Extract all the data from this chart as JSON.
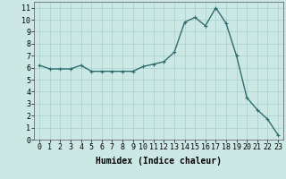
{
  "x": [
    0,
    1,
    2,
    3,
    4,
    5,
    6,
    7,
    8,
    9,
    10,
    11,
    12,
    13,
    14,
    15,
    16,
    17,
    18,
    19,
    20,
    21,
    22,
    23
  ],
  "y": [
    6.2,
    5.9,
    5.9,
    5.9,
    6.2,
    5.7,
    5.7,
    5.7,
    5.7,
    5.7,
    6.1,
    6.3,
    6.5,
    7.3,
    9.8,
    10.2,
    9.5,
    11.0,
    9.7,
    7.0,
    3.5,
    2.5,
    1.7,
    0.4
  ],
  "line_color": "#2d6e6e",
  "marker": "+",
  "markersize": 3,
  "linewidth": 1.0,
  "bg_color": "#cce8e4",
  "grid_color": "#aacfcc",
  "xlabel": "Humidex (Indice chaleur)",
  "xlabel_fontsize": 7,
  "xlabel_weight": "bold",
  "ylabel_ticks": [
    0,
    1,
    2,
    3,
    4,
    5,
    6,
    7,
    8,
    9,
    10,
    11
  ],
  "xlim": [
    -0.5,
    23.5
  ],
  "ylim": [
    0,
    11.5
  ],
  "tick_fontsize": 6,
  "figsize": [
    3.2,
    2.0
  ],
  "dpi": 100
}
